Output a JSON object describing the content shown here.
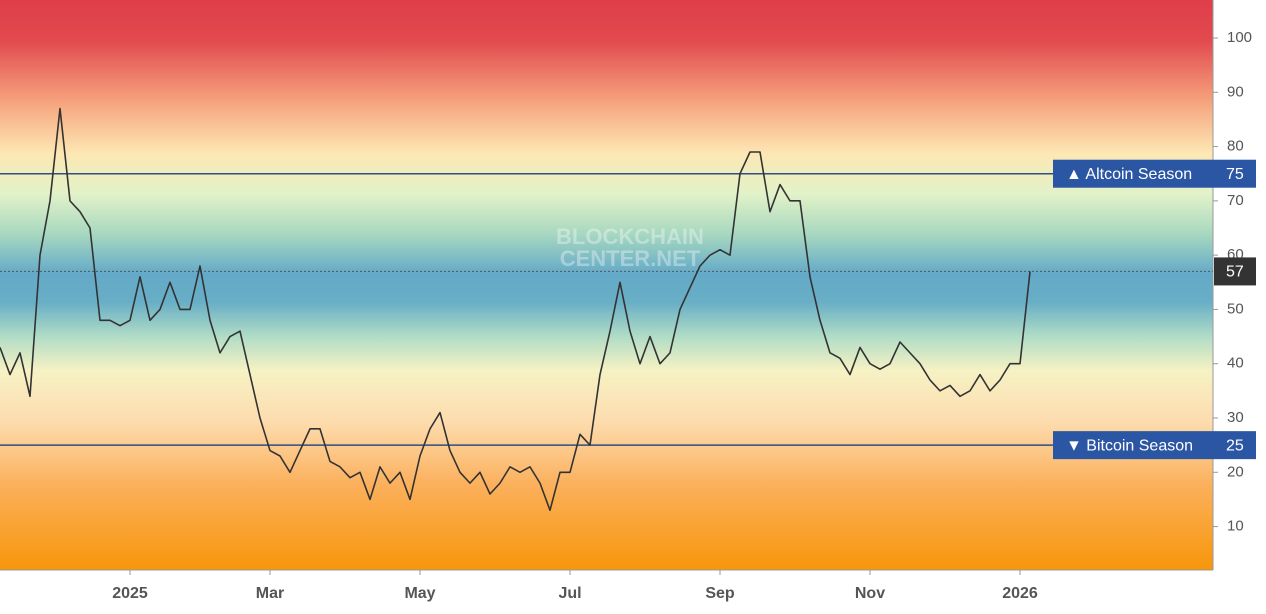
{
  "chart_data": {
    "type": "line",
    "watermark": [
      "BLOCKCHAIN",
      "CENTER.NET"
    ],
    "categories": [
      null,
      null,
      null,
      null,
      null,
      null,
      null,
      null,
      null,
      null,
      null,
      null,
      null,
      "2025",
      null,
      null,
      null,
      null,
      null,
      null,
      null,
      null,
      null,
      null,
      null,
      null,
      null,
      "Mar",
      null,
      null,
      null,
      null,
      null,
      null,
      null,
      null,
      null,
      null,
      null,
      null,
      null,
      null,
      "May",
      null,
      null,
      null,
      null,
      null,
      null,
      null,
      null,
      null,
      null,
      null,
      null,
      null,
      null,
      "Jul",
      null,
      null,
      null,
      null,
      null,
      null,
      null,
      null,
      null,
      null,
      null,
      null,
      null,
      null,
      "Sep",
      null,
      null,
      null,
      null,
      null,
      null,
      null,
      null,
      null,
      null,
      null,
      null,
      null,
      null,
      "Nov",
      null,
      null,
      null,
      null,
      null,
      null,
      null,
      null,
      null,
      null,
      null,
      null,
      null,
      null,
      "2026",
      null
    ],
    "values": [
      43,
      38,
      42,
      34,
      60,
      70,
      87,
      70,
      68,
      65,
      48,
      48,
      47,
      48,
      56,
      48,
      50,
      55,
      50,
      50,
      58,
      48,
      42,
      45,
      46,
      38,
      30,
      24,
      23,
      20,
      24,
      28,
      28,
      22,
      21,
      19,
      20,
      15,
      21,
      18,
      20,
      15,
      23,
      28,
      31,
      24,
      20,
      18,
      20,
      16,
      18,
      21,
      20,
      21,
      18,
      13,
      20,
      20,
      27,
      25,
      38,
      46,
      55,
      46,
      40,
      45,
      40,
      42,
      50,
      54,
      58,
      60,
      61,
      60,
      75,
      79,
      79,
      68,
      73,
      70,
      70,
      56,
      48,
      42,
      41,
      38,
      43,
      40,
      39,
      40,
      44,
      42,
      40,
      37,
      35,
      36,
      34,
      35,
      38,
      35,
      37,
      40,
      40,
      57
    ],
    "color": "#333333",
    "ylim": [
      2,
      107
    ],
    "yticks": [
      10,
      20,
      30,
      40,
      50,
      60,
      70,
      80,
      90,
      100
    ],
    "annotations": [
      {
        "label": "▲ Altcoin Season",
        "value": 75
      },
      {
        "label": "▼ Bitcoin Season",
        "value": 25
      }
    ]
  }
}
